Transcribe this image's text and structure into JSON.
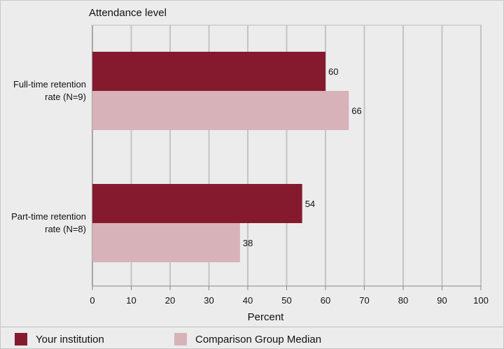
{
  "chart_data": {
    "type": "bar",
    "orientation": "horizontal",
    "title": "Attendance level",
    "xlabel": "Percent",
    "xlim": [
      0,
      100
    ],
    "xticks": [
      0,
      10,
      20,
      30,
      40,
      50,
      60,
      70,
      80,
      90,
      100
    ],
    "grid": true,
    "categories": [
      [
        "Full-time retention",
        "rate (N=9)"
      ],
      [
        "Part-time retention",
        "rate (N=8)"
      ]
    ],
    "series": [
      {
        "name": "Your institution",
        "color": "#851a2e",
        "values": [
          60,
          54
        ]
      },
      {
        "name": "Comparison Group Median",
        "color": "#d8b2b9",
        "values": [
          66,
          38
        ]
      }
    ],
    "legend_position": "bottom"
  }
}
